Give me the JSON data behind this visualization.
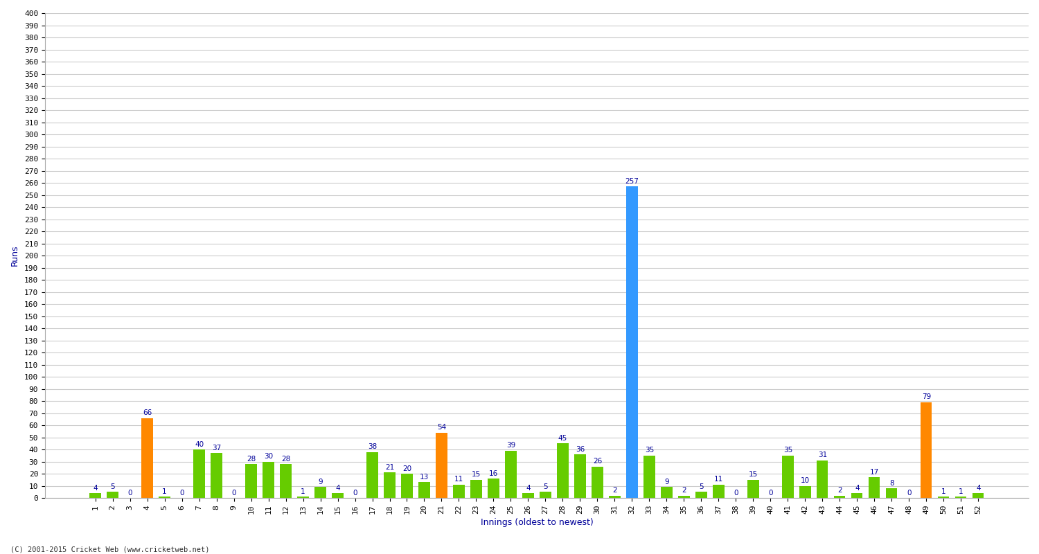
{
  "xlabel": "Innings (oldest to newest)",
  "ylabel": "Runs",
  "ylim": [
    0,
    400
  ],
  "background_color": "#ffffff",
  "grid_color": "#cccccc",
  "innings": [
    1,
    2,
    3,
    4,
    5,
    6,
    7,
    8,
    9,
    10,
    11,
    12,
    13,
    14,
    15,
    16,
    17,
    18,
    19,
    20,
    21,
    22,
    23,
    24,
    25,
    26,
    27,
    28,
    29,
    30,
    31,
    32,
    33,
    34,
    35,
    36,
    37,
    38,
    39,
    40,
    41,
    42,
    43,
    44,
    45,
    46,
    47,
    48,
    49,
    50,
    51,
    52
  ],
  "values": [
    4,
    5,
    0,
    66,
    1,
    0,
    40,
    37,
    0,
    28,
    30,
    28,
    1,
    9,
    4,
    0,
    38,
    21,
    20,
    13,
    54,
    11,
    15,
    16,
    39,
    4,
    5,
    45,
    36,
    26,
    2,
    257,
    35,
    9,
    2,
    5,
    11,
    0,
    15,
    0,
    35,
    10,
    31,
    2,
    4,
    17,
    8,
    0,
    79,
    1,
    1,
    4
  ],
  "bar_colors": [
    "#66cc00",
    "#66cc00",
    "#66cc00",
    "#ff8800",
    "#66cc00",
    "#66cc00",
    "#66cc00",
    "#66cc00",
    "#66cc00",
    "#66cc00",
    "#66cc00",
    "#66cc00",
    "#66cc00",
    "#66cc00",
    "#66cc00",
    "#66cc00",
    "#66cc00",
    "#66cc00",
    "#66cc00",
    "#66cc00",
    "#ff8800",
    "#66cc00",
    "#66cc00",
    "#66cc00",
    "#66cc00",
    "#66cc00",
    "#66cc00",
    "#66cc00",
    "#66cc00",
    "#66cc00",
    "#66cc00",
    "#3399ff",
    "#66cc00",
    "#66cc00",
    "#66cc00",
    "#66cc00",
    "#66cc00",
    "#66cc00",
    "#66cc00",
    "#66cc00",
    "#66cc00",
    "#66cc00",
    "#66cc00",
    "#66cc00",
    "#66cc00",
    "#66cc00",
    "#66cc00",
    "#66cc00",
    "#ff8800",
    "#66cc00",
    "#66cc00",
    "#66cc00"
  ],
  "label_color": "#000099",
  "label_fontsize": 7.5,
  "tick_fontsize": 8,
  "axis_label_fontsize": 9,
  "footer": "(C) 2001-2015 Cricket Web (www.cricketweb.net)"
}
